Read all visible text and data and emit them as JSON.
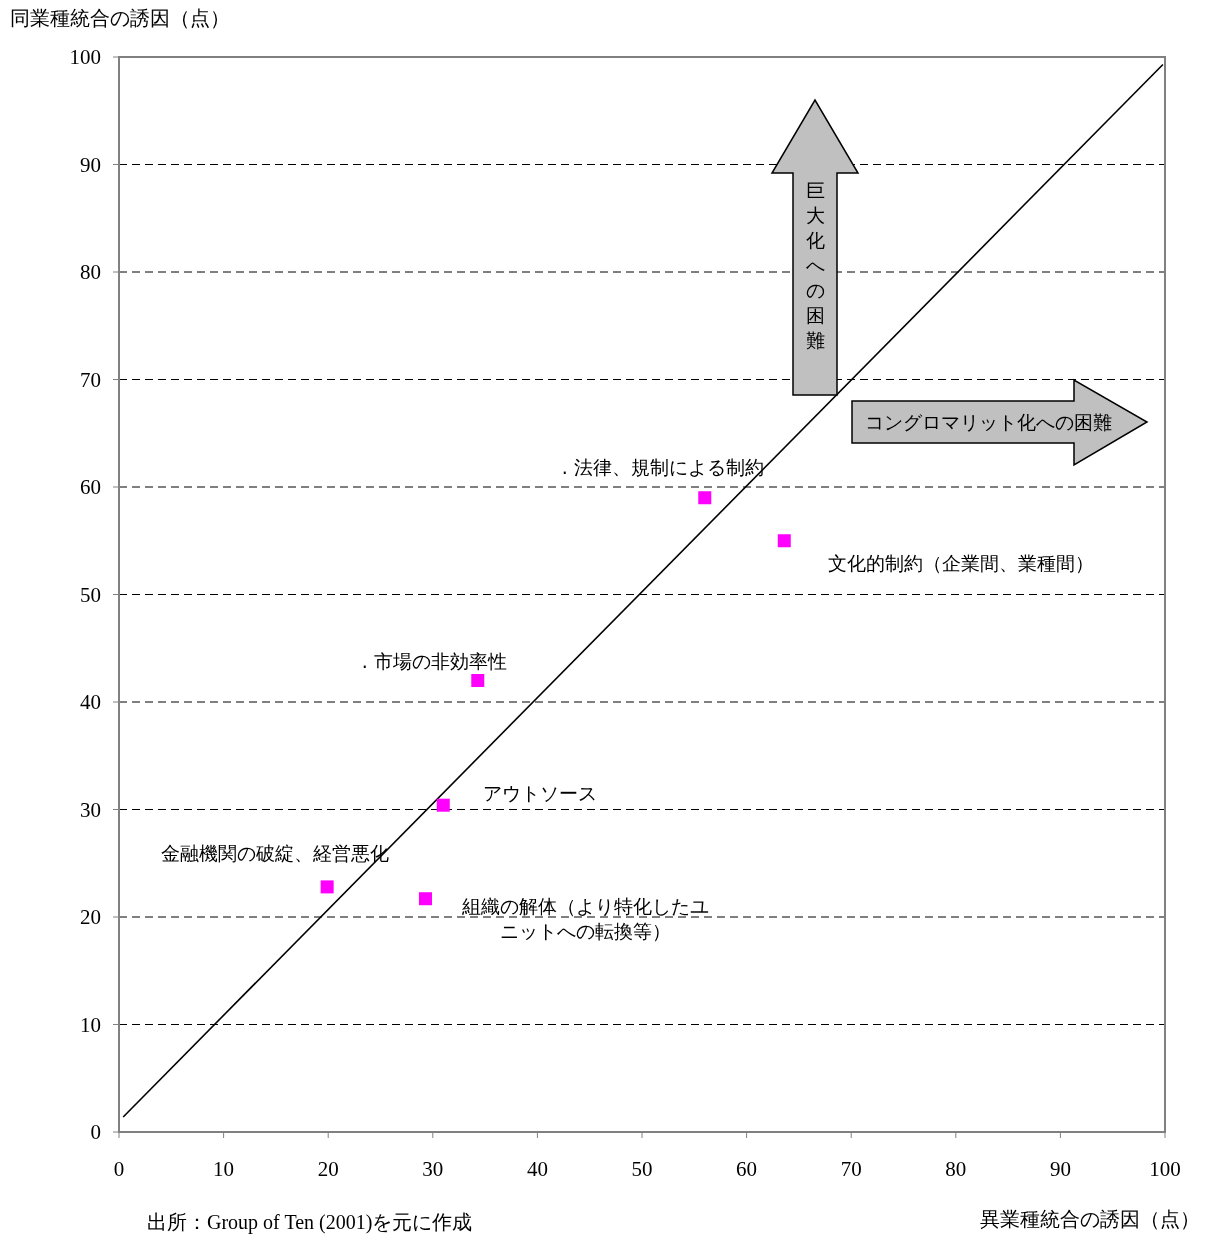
{
  "chart_data": {
    "type": "scatter",
    "xlabel": "異業種統合の誘因（点）",
    "ylabel": "同業種統合の誘因（点）",
    "xlim": [
      0,
      100
    ],
    "xticks": [
      0,
      10,
      20,
      30,
      40,
      50,
      60,
      70,
      80,
      90,
      100
    ],
    "ylim": [
      0,
      100
    ],
    "yticks": [
      0,
      10,
      20,
      30,
      40,
      50,
      60,
      70,
      80,
      90,
      100
    ],
    "grid": "y",
    "line_style": "dashed",
    "series": [
      {
        "color": "#ff00ff",
        "marker": "square",
        "x": [
          19.9,
          29.3,
          31.0,
          34.3,
          56.0,
          63.6
        ],
        "values": [
          22.8,
          21.7,
          30.4,
          42.0,
          59.0,
          55.0
        ]
      },
      {
        "type": "line",
        "color": "#000000",
        "marker": "none",
        "line_style": "solid",
        "x": [
          0.4,
          99.8
        ],
        "values": [
          1.4,
          99.3
        ]
      }
    ],
    "annotations": [
      {
        "text": "金融機関の破綻、経営悪化",
        "x": 19.9,
        "y": 22.8
      },
      {
        "text": "組織の解体（より特化したユニットへの転換等）",
        "x": 29.3,
        "y": 21.7
      },
      {
        "text": "アウトソース",
        "x": 31.0,
        "y": 30.4
      },
      {
        "text": ". 市場の非効率性",
        "x": 34.3,
        "y": 42.0
      },
      {
        "text": ". 法律、規制による制約",
        "x": 56.0,
        "y": 59.0
      },
      {
        "text": "文化的制約（企業間、業種間）",
        "x": 63.6,
        "y": 55.0
      },
      "巨大化への困難",
      "コングロマリット化への困難",
      "出所：Group of Ten (2001)を元に作成"
    ]
  }
}
